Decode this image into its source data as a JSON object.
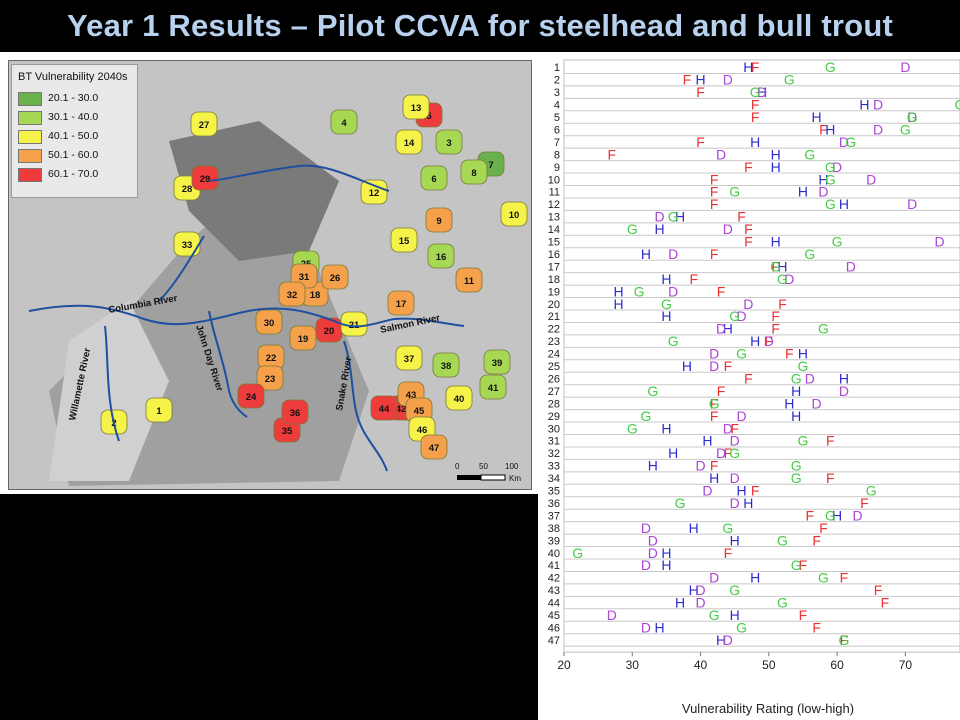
{
  "slide": {
    "title": "Year 1 Results – Pilot CCVA for steelhead and bull trout"
  },
  "map": {
    "legend": {
      "title": "BT Vulnerability 2040s",
      "classes": [
        {
          "label": "20.1 - 30.0",
          "color": "#6ab04c"
        },
        {
          "label": "30.1 - 40.0",
          "color": "#a6d854"
        },
        {
          "label": "40.1 - 50.0",
          "color": "#f5f24a"
        },
        {
          "label": "50.1 - 60.0",
          "color": "#f5a04a"
        },
        {
          "label": "60.1 - 70.0",
          "color": "#ee3b3b"
        }
      ]
    },
    "rivers": [
      "Columbia River",
      "Willamette River",
      "John Day River",
      "Snake River",
      "Salmon River"
    ],
    "scalebar": {
      "ticks": [
        "0",
        "50",
        "100"
      ],
      "unit": "Km"
    },
    "units": [
      {
        "id": "1",
        "cls": 2
      },
      {
        "id": "2",
        "cls": 2
      },
      {
        "id": "3",
        "cls": 1
      },
      {
        "id": "4",
        "cls": 1
      },
      {
        "id": "5",
        "cls": 4
      },
      {
        "id": "6",
        "cls": 1
      },
      {
        "id": "7",
        "cls": 0
      },
      {
        "id": "8",
        "cls": 1
      },
      {
        "id": "9",
        "cls": 3
      },
      {
        "id": "10",
        "cls": 2
      },
      {
        "id": "11",
        "cls": 3
      },
      {
        "id": "12",
        "cls": 2
      },
      {
        "id": "13",
        "cls": 2
      },
      {
        "id": "14",
        "cls": 2
      },
      {
        "id": "15",
        "cls": 2
      },
      {
        "id": "16",
        "cls": 1
      },
      {
        "id": "17",
        "cls": 3
      },
      {
        "id": "18",
        "cls": 3
      },
      {
        "id": "19",
        "cls": 3
      },
      {
        "id": "20",
        "cls": 4
      },
      {
        "id": "21",
        "cls": 2
      },
      {
        "id": "22",
        "cls": 3
      },
      {
        "id": "23",
        "cls": 3
      },
      {
        "id": "24",
        "cls": 4
      },
      {
        "id": "25",
        "cls": 1
      },
      {
        "id": "26",
        "cls": 3
      },
      {
        "id": "27",
        "cls": 2
      },
      {
        "id": "28",
        "cls": 2
      },
      {
        "id": "29",
        "cls": 4
      },
      {
        "id": "30",
        "cls": 3
      },
      {
        "id": "31",
        "cls": 3
      },
      {
        "id": "32",
        "cls": 3
      },
      {
        "id": "33",
        "cls": 2
      },
      {
        "id": "35",
        "cls": 4
      },
      {
        "id": "36",
        "cls": 4
      },
      {
        "id": "37",
        "cls": 2
      },
      {
        "id": "38",
        "cls": 1
      },
      {
        "id": "39",
        "cls": 1
      },
      {
        "id": "40",
        "cls": 2
      },
      {
        "id": "41",
        "cls": 1
      },
      {
        "id": "42",
        "cls": 4
      },
      {
        "id": "43",
        "cls": 3
      },
      {
        "id": "44",
        "cls": 4
      },
      {
        "id": "45",
        "cls": 3
      },
      {
        "id": "46",
        "cls": 2
      },
      {
        "id": "47",
        "cls": 3
      }
    ]
  },
  "chart_data": {
    "type": "scatter",
    "xlabel": "Vulnerability Rating (low-high)",
    "xlim": [
      20,
      78
    ],
    "xticks": [
      20,
      30,
      40,
      50,
      60,
      70
    ],
    "grid": "horizontal",
    "categories": [
      "1",
      "2",
      "3",
      "4",
      "5",
      "6",
      "7",
      "8",
      "9",
      "10",
      "11",
      "12",
      "13",
      "14",
      "15",
      "16",
      "17",
      "18",
      "19",
      "20",
      "21",
      "22",
      "23",
      "24",
      "25",
      "26",
      "27",
      "28",
      "29",
      "30",
      "31",
      "32",
      "33",
      "34",
      "35",
      "36",
      "37",
      "38",
      "39",
      "40",
      "41",
      "42",
      "43",
      "44",
      "45",
      "46",
      "47"
    ],
    "series": [
      {
        "marker": "F",
        "color": "#ee3030",
        "values": [
          48,
          38,
          40,
          48,
          48,
          58,
          40,
          27,
          47,
          42,
          42,
          42,
          46,
          47,
          47,
          42,
          51,
          39,
          43,
          52,
          51,
          51,
          50,
          53,
          44,
          47,
          43,
          42,
          42,
          45,
          59,
          44,
          42,
          59,
          48,
          64,
          56,
          58,
          57,
          44,
          55,
          61,
          66,
          67,
          55,
          57,
          61
        ]
      },
      {
        "marker": "H",
        "color": "#2c2cce",
        "values": [
          47,
          40,
          49,
          64,
          57,
          59,
          48,
          51,
          51,
          58,
          55,
          61,
          37,
          34,
          51,
          32,
          52,
          35,
          28,
          28,
          35,
          44,
          48,
          55,
          38,
          61,
          54,
          53,
          54,
          35,
          41,
          36,
          33,
          42,
          46,
          47,
          60,
          39,
          45,
          35,
          35,
          48,
          39,
          37,
          45,
          34,
          43
        ]
      },
      {
        "marker": "D",
        "color": "#aa45d6",
        "values": [
          70,
          44,
          49,
          66,
          71,
          66,
          61,
          43,
          60,
          65,
          58,
          71,
          34,
          44,
          75,
          36,
          62,
          53,
          36,
          47,
          46,
          43,
          50,
          42,
          42,
          56,
          61,
          57,
          46,
          44,
          45,
          43,
          40,
          45,
          41,
          45,
          63,
          32,
          33,
          33,
          32,
          42,
          40,
          40,
          27,
          32,
          44
        ]
      },
      {
        "marker": "G",
        "color": "#44cc44",
        "values": [
          59,
          53,
          48,
          78,
          71,
          70,
          62,
          56,
          59,
          59,
          45,
          59,
          36,
          30,
          60,
          56,
          51,
          52,
          31,
          35,
          45,
          58,
          36,
          46,
          55,
          54,
          33,
          42,
          32,
          30,
          55,
          45,
          54,
          54,
          65,
          37,
          59,
          44,
          52,
          22,
          54,
          58,
          45,
          52,
          42,
          46,
          61
        ]
      }
    ]
  }
}
